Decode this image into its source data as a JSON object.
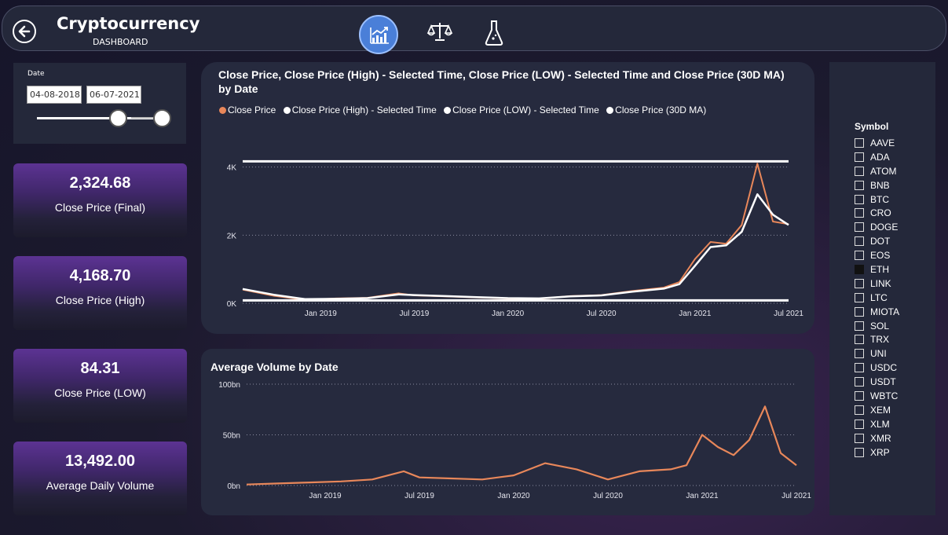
{
  "header": {
    "title": "Cryptocurrency",
    "subtitle": "DASHBOARD",
    "nav": [
      {
        "icon": "trend-chart-icon",
        "active": true
      },
      {
        "icon": "balance-scale-icon",
        "active": false
      },
      {
        "icon": "flask-icon",
        "active": false
      }
    ]
  },
  "date_filter": {
    "label": "Date",
    "start": "04-08-2018",
    "end": "06-07-2021"
  },
  "kpis": [
    {
      "value": "2,324.68",
      "label": "Close Price (Final)"
    },
    {
      "value": "4,168.70",
      "label": "Close Price (High)"
    },
    {
      "value": "84.31",
      "label": "Close Price (LOW)"
    },
    {
      "value": "13,492.00",
      "label": "Average Daily Volume"
    }
  ],
  "colors": {
    "accent_orange": "#e8875a",
    "line_white": "#ffffff",
    "panel": "#262a3e"
  },
  "chart_data": [
    {
      "type": "line",
      "title": "Close Price, Close Price (High) - Selected Time, Close Price (LOW) - Selected Time and Close Price (30D MA) by Date",
      "legend": [
        "Close Price",
        "Close Price (High) - Selected Time",
        "Close Price (LOW) - Selected Time",
        "Close Price (30D MA)"
      ],
      "legend_position": "top-left",
      "x_ticks": [
        "Jan 2019",
        "Jul 2019",
        "Jan 2020",
        "Jul 2020",
        "Jan 2021",
        "Jul 2021"
      ],
      "y_ticks": [
        "0K",
        "2K",
        "4K"
      ],
      "ylim": [
        0,
        4500
      ],
      "grid": true,
      "x": [
        "2018-08",
        "2018-10",
        "2018-12",
        "2019-02",
        "2019-04",
        "2019-06",
        "2019-07",
        "2019-09",
        "2019-11",
        "2020-01",
        "2020-03",
        "2020-05",
        "2020-07",
        "2020-09",
        "2020-11",
        "2020-12",
        "2021-01",
        "2021-02",
        "2021-03",
        "2021-04",
        "2021-05",
        "2021-06",
        "2021-07"
      ],
      "series": [
        {
          "name": "Close Price",
          "values": [
            400,
            220,
            100,
            140,
            160,
            290,
            230,
            200,
            170,
            140,
            130,
            210,
            240,
            360,
            460,
            620,
            1300,
            1800,
            1750,
            2300,
            4100,
            2400,
            2324
          ]
        },
        {
          "name": "Close Price (High) - Selected Time",
          "values": [
            4168,
            4168,
            4168,
            4168,
            4168,
            4168,
            4168,
            4168,
            4168,
            4168,
            4168,
            4168,
            4168,
            4168,
            4168,
            4168,
            4168,
            4168,
            4168,
            4168,
            4168,
            4168,
            4168
          ]
        },
        {
          "name": "Close Price (LOW) - Selected Time",
          "values": [
            84,
            84,
            84,
            84,
            84,
            84,
            84,
            84,
            84,
            84,
            84,
            84,
            84,
            84,
            84,
            84,
            84,
            84,
            84,
            84,
            84,
            84,
            84
          ]
        },
        {
          "name": "Close Price (30D MA)",
          "values": [
            420,
            250,
            120,
            130,
            150,
            260,
            240,
            210,
            180,
            150,
            140,
            200,
            230,
            340,
            430,
            560,
            1100,
            1650,
            1700,
            2100,
            3200,
            2600,
            2300
          ]
        }
      ]
    },
    {
      "type": "line",
      "title": "Average Volume by Date",
      "x_ticks": [
        "Jan 2019",
        "Jul 2019",
        "Jan 2020",
        "Jul 2020",
        "Jan 2021",
        "Jul 2021"
      ],
      "y_ticks": [
        "0bn",
        "50bn",
        "100bn"
      ],
      "ylim": [
        0,
        100
      ],
      "grid": true,
      "x": [
        "2018-08",
        "2018-10",
        "2018-12",
        "2019-02",
        "2019-04",
        "2019-06",
        "2019-07",
        "2019-09",
        "2019-11",
        "2020-01",
        "2020-03",
        "2020-05",
        "2020-07",
        "2020-09",
        "2020-11",
        "2020-12",
        "2021-01",
        "2021-02",
        "2021-03",
        "2021-04",
        "2021-05",
        "2021-06",
        "2021-07"
      ],
      "series": [
        {
          "name": "Average Volume",
          "values": [
            1,
            2,
            3,
            4,
            6,
            14,
            8,
            7,
            6,
            10,
            22,
            16,
            6,
            14,
            16,
            20,
            50,
            38,
            30,
            45,
            78,
            32,
            20
          ]
        }
      ]
    }
  ],
  "symbols": {
    "title": "Symbol",
    "items": [
      "AAVE",
      "ADA",
      "ATOM",
      "BNB",
      "BTC",
      "CRO",
      "DOGE",
      "DOT",
      "EOS",
      "ETH",
      "LINK",
      "LTC",
      "MIOTA",
      "SOL",
      "TRX",
      "UNI",
      "USDC",
      "USDT",
      "WBTC",
      "XEM",
      "XLM",
      "XMR",
      "XRP"
    ],
    "selected": "ETH"
  }
}
